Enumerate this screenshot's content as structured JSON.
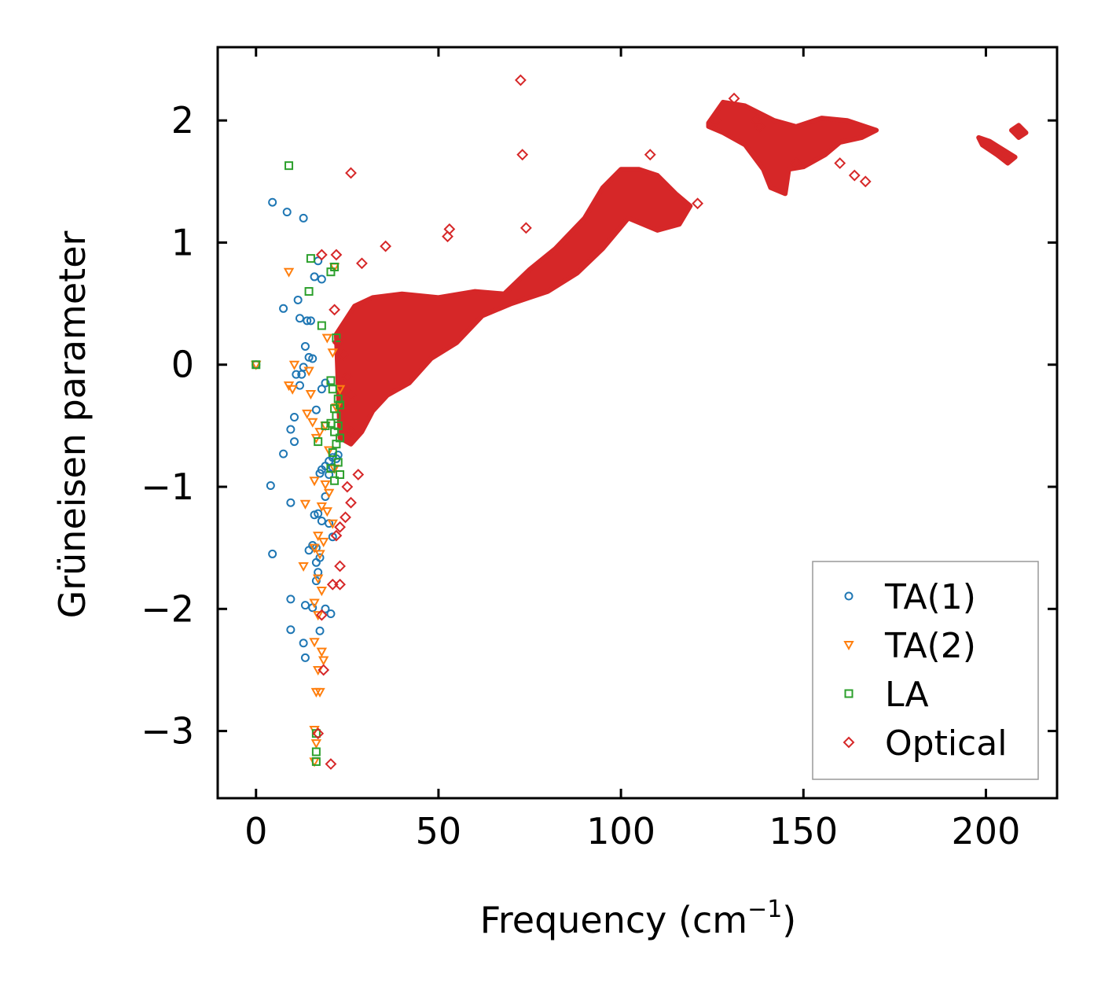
{
  "chart_data": {
    "type": "scatter",
    "title": "",
    "xlabel": "Frequency (cm",
    "xlabel_sup": "−1",
    "xlabel_suffix": ")",
    "ylabel": "Grüneisen parameter",
    "xlim": [
      -10.5,
      219.5
    ],
    "ylim": [
      -3.55,
      2.6
    ],
    "xticks": [
      0,
      50,
      100,
      150,
      200
    ],
    "xtick_labels": [
      "0",
      "50",
      "100",
      "150",
      "200"
    ],
    "yticks": [
      -3,
      -2,
      -1,
      0,
      1,
      2
    ],
    "ytick_labels": [
      "−3",
      "−2",
      "−1",
      "0",
      "1",
      "2"
    ],
    "grid": false,
    "legend_position": "bottom-right",
    "series": [
      {
        "name": "TA(1)",
        "marker": "circle",
        "color": "#1f77b4",
        "points": [
          [
            0,
            0
          ],
          [
            4.5,
            1.33
          ],
          [
            8.5,
            1.25
          ],
          [
            13,
            1.2
          ],
          [
            17,
            0.85
          ],
          [
            16,
            0.72
          ],
          [
            18,
            0.7
          ],
          [
            11.5,
            0.53
          ],
          [
            7.5,
            0.46
          ],
          [
            12,
            0.38
          ],
          [
            14,
            0.36
          ],
          [
            15,
            0.36
          ],
          [
            13.5,
            0.15
          ],
          [
            14.5,
            0.06
          ],
          [
            15.5,
            0.05
          ],
          [
            13,
            -0.02
          ],
          [
            12.5,
            -0.08
          ],
          [
            11,
            -0.08
          ],
          [
            12,
            -0.17
          ],
          [
            19,
            -0.15
          ],
          [
            18,
            -0.2
          ],
          [
            16.5,
            -0.37
          ],
          [
            10.5,
            -0.43
          ],
          [
            9.5,
            -0.53
          ],
          [
            10.5,
            -0.63
          ],
          [
            7.5,
            -0.73
          ],
          [
            21,
            -0.76
          ],
          [
            22,
            -0.77
          ],
          [
            22.5,
            -0.74
          ],
          [
            20,
            -0.79
          ],
          [
            19,
            -0.83
          ],
          [
            18,
            -0.86
          ],
          [
            17.5,
            -0.89
          ],
          [
            21,
            -0.84
          ],
          [
            20,
            -0.9
          ],
          [
            4,
            -0.99
          ],
          [
            9.5,
            -1.13
          ],
          [
            19,
            -1.08
          ],
          [
            17,
            -1.22
          ],
          [
            16,
            -1.23
          ],
          [
            18,
            -1.28
          ],
          [
            20,
            -1.3
          ],
          [
            21,
            -1.41
          ],
          [
            15.5,
            -1.48
          ],
          [
            14.5,
            -1.52
          ],
          [
            16.5,
            -1.5
          ],
          [
            17.5,
            -1.58
          ],
          [
            16.5,
            -1.62
          ],
          [
            17,
            -1.7
          ],
          [
            16.5,
            -1.77
          ],
          [
            4.5,
            -1.55
          ],
          [
            9.5,
            -1.92
          ],
          [
            13.5,
            -1.97
          ],
          [
            15.5,
            -1.99
          ],
          [
            19,
            -2.0
          ],
          [
            20.5,
            -2.04
          ],
          [
            9.5,
            -2.17
          ],
          [
            17.5,
            -2.18
          ],
          [
            13,
            -2.28
          ],
          [
            13.5,
            -2.4
          ]
        ]
      },
      {
        "name": "TA(2)",
        "marker": "triangle",
        "color": "#ff7f0e",
        "points": [
          [
            0,
            0
          ],
          [
            9,
            0.76
          ],
          [
            21.5,
            0.8
          ],
          [
            19.5,
            0.22
          ],
          [
            21,
            0.1
          ],
          [
            10.5,
            0.0
          ],
          [
            14.5,
            -0.05
          ],
          [
            9,
            -0.17
          ],
          [
            10,
            -0.2
          ],
          [
            15,
            -0.24
          ],
          [
            23,
            -0.2
          ],
          [
            22,
            -0.35
          ],
          [
            14,
            -0.4
          ],
          [
            15.5,
            -0.47
          ],
          [
            19,
            -0.5
          ],
          [
            17.5,
            -0.55
          ],
          [
            16.5,
            -0.6
          ],
          [
            20,
            -0.7
          ],
          [
            21.5,
            -0.85
          ],
          [
            16,
            -0.95
          ],
          [
            19,
            -0.98
          ],
          [
            20,
            -1.05
          ],
          [
            13.5,
            -1.14
          ],
          [
            18,
            -1.16
          ],
          [
            19.5,
            -1.2
          ],
          [
            21,
            -1.3
          ],
          [
            17,
            -1.4
          ],
          [
            18.5,
            -1.45
          ],
          [
            16,
            -1.5
          ],
          [
            17.5,
            -1.55
          ],
          [
            13,
            -1.65
          ],
          [
            17,
            -1.75
          ],
          [
            18,
            -1.85
          ],
          [
            16,
            -1.95
          ],
          [
            17,
            -2.05
          ],
          [
            16,
            -2.27
          ],
          [
            18,
            -2.35
          ],
          [
            18.5,
            -2.42
          ],
          [
            17,
            -2.5
          ],
          [
            16.5,
            -2.68
          ],
          [
            17.5,
            -2.68
          ],
          [
            16,
            -2.99
          ],
          [
            16.5,
            -3.1
          ],
          [
            16,
            -3.25
          ]
        ]
      },
      {
        "name": "LA",
        "marker": "square",
        "color": "#2ca02c",
        "points": [
          [
            0,
            0
          ],
          [
            9,
            1.63
          ],
          [
            15,
            0.87
          ],
          [
            21.5,
            0.8
          ],
          [
            20.5,
            0.76
          ],
          [
            14.5,
            0.6
          ],
          [
            18,
            0.32
          ],
          [
            22,
            0.22
          ],
          [
            20.5,
            -0.13
          ],
          [
            21,
            -0.2
          ],
          [
            22.5,
            -0.28
          ],
          [
            23,
            -0.33
          ],
          [
            21.5,
            -0.36
          ],
          [
            22,
            -0.42
          ],
          [
            20.5,
            -0.48
          ],
          [
            22.5,
            -0.5
          ],
          [
            21.5,
            -0.55
          ],
          [
            19,
            -0.5
          ],
          [
            23,
            -0.6
          ],
          [
            22,
            -0.65
          ],
          [
            17,
            -0.63
          ],
          [
            21,
            -0.72
          ],
          [
            22.5,
            -0.8
          ],
          [
            20.5,
            -0.85
          ],
          [
            23,
            -0.9
          ],
          [
            21.5,
            -0.95
          ],
          [
            16.5,
            -3.02
          ],
          [
            16.5,
            -3.17
          ],
          [
            16.5,
            -3.25
          ]
        ]
      },
      {
        "name": "Optical",
        "marker": "diamond",
        "color": "#d62728",
        "points": [
          [
            72.5,
            2.33
          ],
          [
            73,
            1.72
          ],
          [
            26,
            1.57
          ],
          [
            53,
            1.11
          ],
          [
            52.5,
            1.05
          ],
          [
            74,
            1.12
          ],
          [
            35.5,
            0.97
          ],
          [
            22,
            0.9
          ],
          [
            18,
            0.9
          ],
          [
            29,
            0.83
          ],
          [
            21.5,
            0.45
          ],
          [
            22.5,
            0.18
          ],
          [
            24,
            0.08
          ],
          [
            25,
            -0.1
          ],
          [
            26,
            -0.25
          ],
          [
            26,
            -0.55
          ],
          [
            28,
            -0.9
          ],
          [
            25,
            -1.0
          ],
          [
            26,
            -1.13
          ],
          [
            24.5,
            -1.25
          ],
          [
            23,
            -1.33
          ],
          [
            22,
            -1.4
          ],
          [
            23,
            -1.65
          ],
          [
            23,
            -1.8
          ],
          [
            21,
            -1.8
          ],
          [
            18,
            -2.05
          ],
          [
            18.5,
            -2.5
          ],
          [
            17,
            -3.02
          ],
          [
            20.5,
            -3.27
          ],
          [
            108,
            1.72
          ],
          [
            121,
            1.32
          ],
          [
            137,
            2.0
          ],
          [
            160,
            1.65
          ],
          [
            164,
            1.55
          ],
          [
            167,
            1.5
          ],
          [
            148,
            1.65
          ],
          [
            126,
            2.0
          ],
          [
            131,
            2.18
          ],
          [
            138,
            1.95
          ]
        ]
      }
    ],
    "dense_bands": [
      [
        [
          22,
          0.25
        ],
        [
          27,
          0.48
        ],
        [
          32,
          0.55
        ],
        [
          40,
          0.58
        ],
        [
          50,
          0.55
        ],
        [
          60,
          0.6
        ],
        [
          68,
          0.58
        ],
        [
          75,
          0.78
        ],
        [
          82,
          0.95
        ],
        [
          90,
          1.2
        ],
        [
          95,
          1.45
        ],
        [
          100,
          1.6
        ],
        [
          105,
          1.6
        ],
        [
          110,
          1.55
        ],
        [
          115,
          1.4
        ],
        [
          119,
          1.3
        ],
        [
          116,
          1.15
        ],
        [
          110,
          1.1
        ],
        [
          102,
          1.2
        ],
        [
          95,
          0.95
        ],
        [
          88,
          0.75
        ],
        [
          80,
          0.6
        ],
        [
          70,
          0.5
        ],
        [
          62,
          0.4
        ],
        [
          55,
          0.18
        ],
        [
          48,
          0.05
        ],
        [
          42,
          -0.15
        ],
        [
          36,
          -0.25
        ],
        [
          32,
          -0.38
        ],
        [
          29,
          -0.55
        ],
        [
          26,
          -0.65
        ],
        [
          23,
          -0.6
        ]
      ],
      [
        [
          124,
          1.98
        ],
        [
          128,
          2.15
        ],
        [
          134,
          2.12
        ],
        [
          142,
          2.0
        ],
        [
          148,
          1.95
        ],
        [
          155,
          2.02
        ],
        [
          162,
          2.0
        ],
        [
          170,
          1.92
        ],
        [
          166,
          1.86
        ],
        [
          160,
          1.82
        ],
        [
          156,
          1.72
        ],
        [
          150,
          1.62
        ],
        [
          146,
          1.6
        ],
        [
          145,
          1.4
        ],
        [
          141,
          1.45
        ],
        [
          139,
          1.6
        ],
        [
          134,
          1.8
        ],
        [
          128,
          1.9
        ],
        [
          124,
          1.95
        ]
      ],
      [
        [
          198,
          1.86
        ],
        [
          201,
          1.83
        ],
        [
          208,
          1.7
        ],
        [
          206,
          1.65
        ],
        [
          203,
          1.72
        ],
        [
          199,
          1.8
        ]
      ],
      [
        [
          207,
          1.92
        ],
        [
          209,
          1.96
        ],
        [
          211,
          1.9
        ],
        [
          209,
          1.86
        ]
      ]
    ]
  }
}
